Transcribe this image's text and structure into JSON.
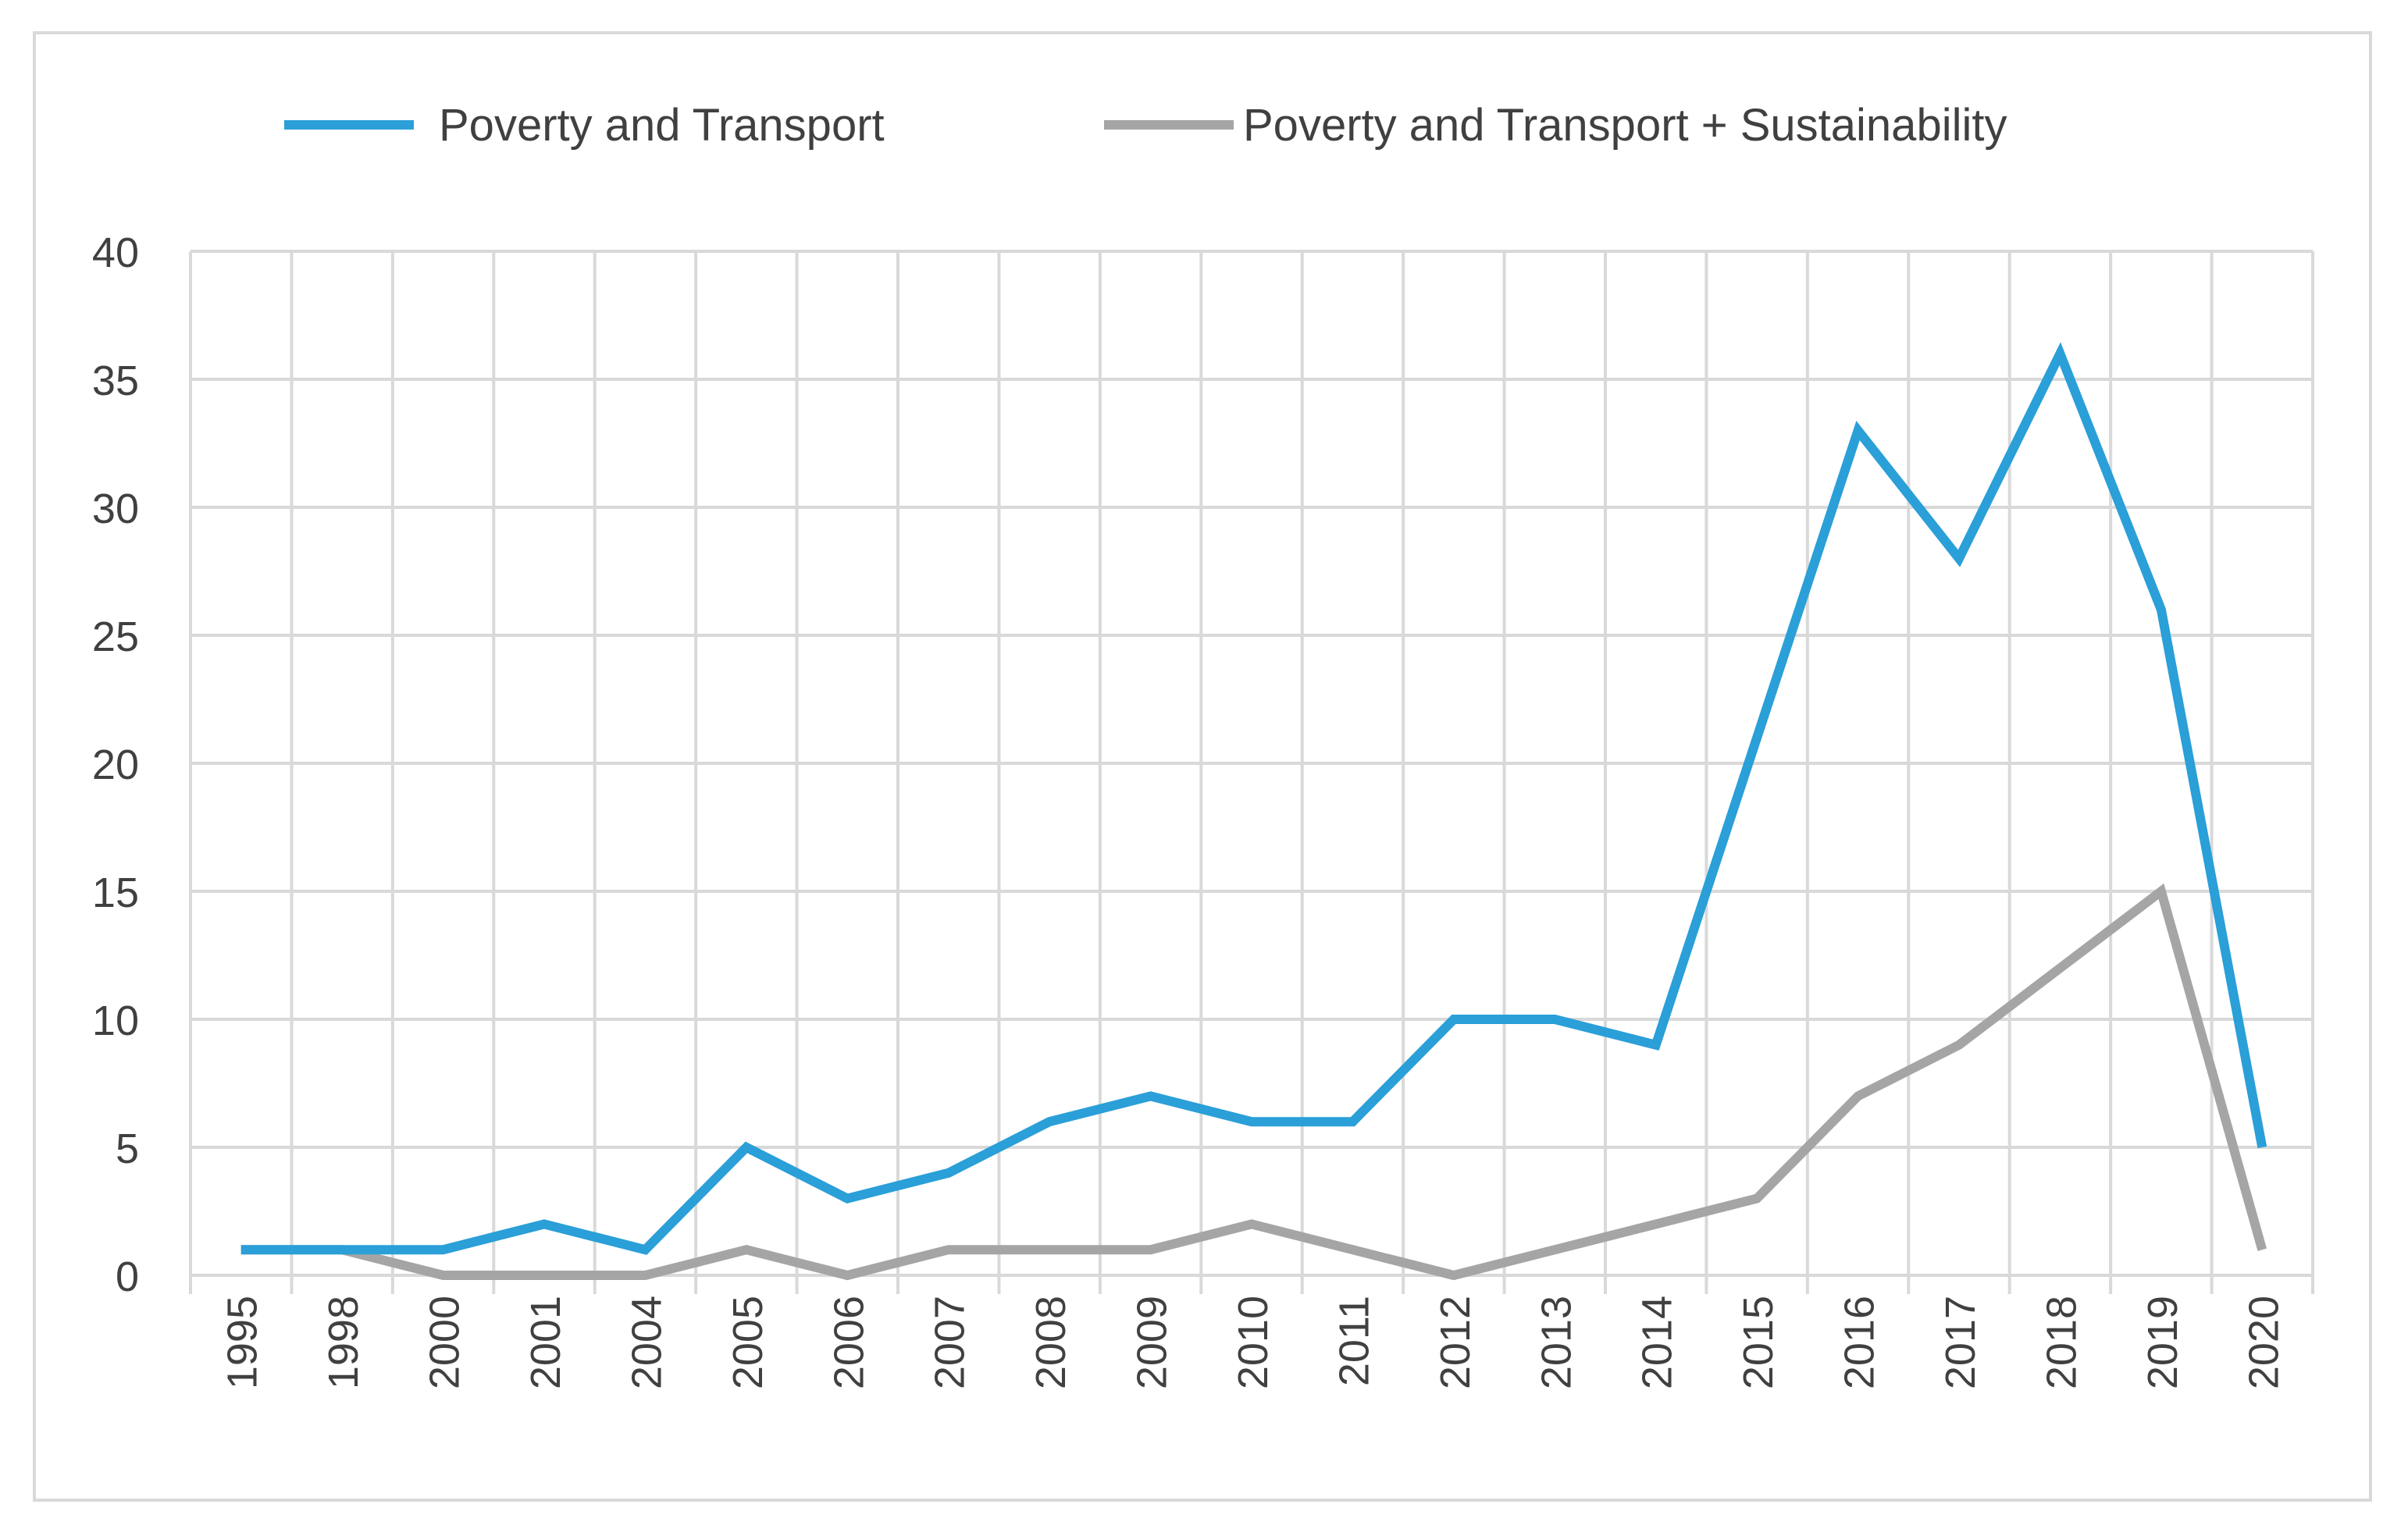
{
  "chart_data": {
    "type": "line",
    "title": "",
    "xlabel": "",
    "ylabel": "",
    "categories": [
      "1995",
      "1998",
      "2000",
      "2001",
      "2004",
      "2005",
      "2006",
      "2007",
      "2008",
      "2009",
      "2010",
      "2011",
      "2012",
      "2013",
      "2014",
      "2015",
      "2016",
      "2017",
      "2018",
      "2019",
      "2020"
    ],
    "ylim": [
      0,
      40
    ],
    "yticks": [
      0,
      5,
      10,
      15,
      20,
      25,
      30,
      35,
      40
    ],
    "grid": true,
    "legend_position": "top",
    "series": [
      {
        "name": "Poverty and Transport",
        "color": "#2a9fd8",
        "values": [
          1,
          1,
          1,
          2,
          1,
          5,
          3,
          4,
          6,
          7,
          6,
          6,
          10,
          10,
          9,
          21,
          33,
          28,
          36,
          26,
          5
        ]
      },
      {
        "name": "Poverty and Transport + Sustainability",
        "color": "#a5a5a5",
        "values": [
          1,
          1,
          0,
          0,
          0,
          1,
          0,
          1,
          1,
          1,
          2,
          1,
          0,
          1,
          2,
          3,
          7,
          9,
          12,
          15,
          1
        ]
      }
    ]
  }
}
